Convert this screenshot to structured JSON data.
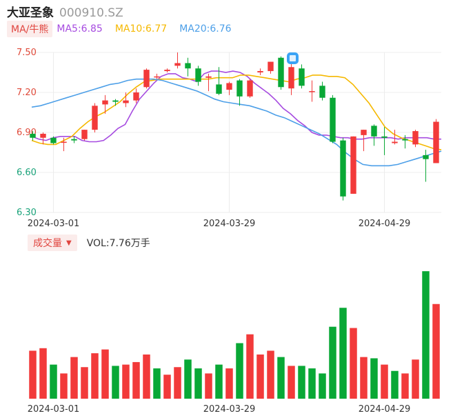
{
  "header": {
    "name": "大亚圣象",
    "code": "000910.SZ"
  },
  "ma_legend": {
    "tag": "MA/牛熊",
    "items": [
      {
        "label": "MA5:6.85",
        "color": "#a64be0"
      },
      {
        "label": "MA10:6.77",
        "color": "#f5b800"
      },
      {
        "label": "MA20:6.76",
        "color": "#4c9fe8"
      }
    ]
  },
  "volume_legend": {
    "tag": "成交量",
    "label": "VOL:7.76万手"
  },
  "colors": {
    "up": "#f23a3a",
    "down": "#09a836",
    "grid": "#ececec",
    "price_axis": "#e04a3a",
    "low_axis": "#1aa37a"
  },
  "chart_data": [
    {
      "type": "candlestick",
      "y_ticks": [
        "7.50",
        "7.20",
        "6.90",
        "6.60",
        "6.30"
      ],
      "ylim": [
        6.3,
        7.5
      ],
      "x_tick_labels": [
        {
          "label": "2024-03-01",
          "index": 2
        },
        {
          "label": "2024-03-29",
          "index": 19
        },
        {
          "label": "2024-04-29",
          "index": 34
        }
      ],
      "candles": [
        {
          "o": 6.89,
          "h": 6.91,
          "l": 6.84,
          "c": 6.86
        },
        {
          "o": 6.86,
          "h": 6.9,
          "l": 6.81,
          "c": 6.89
        },
        {
          "o": 6.86,
          "h": 6.87,
          "l": 6.81,
          "c": 6.82
        },
        {
          "o": 6.83,
          "h": 6.86,
          "l": 6.76,
          "c": 6.83
        },
        {
          "o": 6.85,
          "h": 6.87,
          "l": 6.82,
          "c": 6.84
        },
        {
          "o": 6.85,
          "h": 6.92,
          "l": 6.84,
          "c": 6.92
        },
        {
          "o": 6.92,
          "h": 7.12,
          "l": 6.9,
          "c": 7.1
        },
        {
          "o": 7.11,
          "h": 7.18,
          "l": 7.04,
          "c": 7.14
        },
        {
          "o": 7.14,
          "h": 7.15,
          "l": 7.1,
          "c": 7.13
        },
        {
          "o": 7.12,
          "h": 7.2,
          "l": 7.09,
          "c": 7.14
        },
        {
          "o": 7.14,
          "h": 7.23,
          "l": 7.12,
          "c": 7.2
        },
        {
          "o": 7.24,
          "h": 7.38,
          "l": 7.23,
          "c": 7.37
        },
        {
          "o": 7.32,
          "h": 7.34,
          "l": 7.3,
          "c": 7.32
        },
        {
          "o": 7.36,
          "h": 7.38,
          "l": 7.35,
          "c": 7.37
        },
        {
          "o": 7.4,
          "h": 7.5,
          "l": 7.38,
          "c": 7.42
        },
        {
          "o": 7.42,
          "h": 7.46,
          "l": 7.32,
          "c": 7.38
        },
        {
          "o": 7.38,
          "h": 7.4,
          "l": 7.25,
          "c": 7.28
        },
        {
          "o": 7.31,
          "h": 7.34,
          "l": 7.21,
          "c": 7.32
        },
        {
          "o": 7.26,
          "h": 7.39,
          "l": 7.18,
          "c": 7.19
        },
        {
          "o": 7.22,
          "h": 7.28,
          "l": 7.18,
          "c": 7.27
        },
        {
          "o": 7.29,
          "h": 7.3,
          "l": 7.1,
          "c": 7.17
        },
        {
          "o": 7.17,
          "h": 7.3,
          "l": 7.16,
          "c": 7.29
        },
        {
          "o": 7.35,
          "h": 7.38,
          "l": 7.33,
          "c": 7.36
        },
        {
          "o": 7.36,
          "h": 7.43,
          "l": 7.34,
          "c": 7.43
        },
        {
          "o": 7.46,
          "h": 7.47,
          "l": 7.22,
          "c": 7.24
        },
        {
          "o": 7.23,
          "h": 7.42,
          "l": 7.18,
          "c": 7.39
        },
        {
          "o": 7.38,
          "h": 7.41,
          "l": 7.23,
          "c": 7.25
        },
        {
          "o": 7.21,
          "h": 7.29,
          "l": 7.13,
          "c": 7.21
        },
        {
          "o": 7.25,
          "h": 7.28,
          "l": 7.14,
          "c": 7.16
        },
        {
          "o": 7.16,
          "h": 7.18,
          "l": 6.82,
          "c": 6.83
        },
        {
          "o": 6.84,
          "h": 6.86,
          "l": 6.39,
          "c": 6.42
        },
        {
          "o": 6.44,
          "h": 6.87,
          "l": 6.44,
          "c": 6.87
        },
        {
          "o": 6.88,
          "h": 6.92,
          "l": 6.76,
          "c": 6.92
        },
        {
          "o": 6.95,
          "h": 6.96,
          "l": 6.8,
          "c": 6.87
        },
        {
          "o": 6.87,
          "h": 6.94,
          "l": 6.73,
          "c": 6.86
        },
        {
          "o": 6.82,
          "h": 6.92,
          "l": 6.81,
          "c": 6.83
        },
        {
          "o": 6.85,
          "h": 6.88,
          "l": 6.78,
          "c": 6.84
        },
        {
          "o": 6.81,
          "h": 6.92,
          "l": 6.79,
          "c": 6.91
        },
        {
          "o": 6.73,
          "h": 6.77,
          "l": 6.53,
          "c": 6.7
        },
        {
          "o": 6.67,
          "h": 7.0,
          "l": 6.67,
          "c": 6.98
        }
      ],
      "series": [
        {
          "name": "MA5",
          "values": [
            6.87,
            6.85,
            6.84,
            6.86,
            6.87,
            6.87,
            6.87,
            6.84,
            6.83,
            6.83,
            6.84,
            6.88,
            6.93,
            6.96,
            7.06,
            7.15,
            7.21,
            7.27,
            7.32,
            7.34,
            7.34,
            7.31,
            7.3,
            7.28,
            7.34,
            7.36,
            7.36,
            7.35,
            7.36,
            7.35,
            7.32,
            7.27,
            7.23,
            7.19,
            7.14,
            7.08,
            7.04,
            6.99,
            6.95,
            6.9,
            6.88,
            6.88,
            6.87,
            6.86,
            6.86,
            6.85,
            6.85,
            6.86,
            6.86,
            6.86,
            6.86,
            6.85,
            6.86,
            6.86,
            6.86,
            6.86,
            6.85,
            6.85
          ]
        },
        {
          "name": "MA10",
          "values": [
            6.84,
            6.82,
            6.81,
            6.81,
            6.84,
            6.87,
            6.93,
            6.98,
            7.02,
            7.05,
            7.09,
            7.13,
            7.19,
            7.24,
            7.28,
            7.29,
            7.3,
            7.3,
            7.3,
            7.3,
            7.3,
            7.3,
            7.3,
            7.31,
            7.31,
            7.31,
            7.33,
            7.33,
            7.32,
            7.31,
            7.3,
            7.29,
            7.28,
            7.3,
            7.31,
            7.33,
            7.33,
            7.32,
            7.32,
            7.31,
            7.26,
            7.19,
            7.12,
            7.03,
            6.94,
            6.89,
            6.86,
            6.84,
            6.82,
            6.8,
            6.78,
            6.77
          ]
        },
        {
          "name": "MA20",
          "values": [
            7.09,
            7.1,
            7.12,
            7.14,
            7.16,
            7.18,
            7.2,
            7.22,
            7.24,
            7.26,
            7.27,
            7.29,
            7.3,
            7.3,
            7.3,
            7.29,
            7.27,
            7.25,
            7.23,
            7.21,
            7.18,
            7.15,
            7.13,
            7.12,
            7.11,
            7.1,
            7.08,
            7.06,
            7.03,
            7.01,
            6.98,
            6.95,
            6.92,
            6.89,
            6.85,
            6.81,
            6.75,
            6.7,
            6.66,
            6.65,
            6.65,
            6.65,
            6.66,
            6.68,
            6.7,
            6.72,
            6.74,
            6.76
          ]
        }
      ]
    },
    {
      "type": "bar",
      "title": "成交量",
      "ylim": [
        0,
        100
      ],
      "x_tick_labels": [
        {
          "label": "2024-03-01",
          "index": 2
        },
        {
          "label": "2024-03-29",
          "index": 19
        },
        {
          "label": "2024-04-29",
          "index": 34
        }
      ],
      "values": [
        38,
        40,
        27,
        20,
        33,
        25,
        36,
        39,
        26,
        27,
        29,
        35,
        24,
        19,
        25,
        31,
        24,
        20,
        27,
        24,
        44,
        51,
        35,
        38,
        33,
        26,
        26,
        24,
        20,
        57,
        72,
        56,
        33,
        32,
        27,
        22,
        20,
        31,
        101,
        75
      ],
      "directions": [
        "up",
        "up",
        "down",
        "up",
        "up",
        "up",
        "up",
        "up",
        "down",
        "up",
        "up",
        "up",
        "down",
        "up",
        "up",
        "down",
        "down",
        "up",
        "down",
        "up",
        "down",
        "up",
        "up",
        "up",
        "down",
        "up",
        "down",
        "down",
        "down",
        "down",
        "down",
        "up",
        "up",
        "down",
        "up",
        "down",
        "up",
        "up",
        "down",
        "up"
      ]
    }
  ]
}
